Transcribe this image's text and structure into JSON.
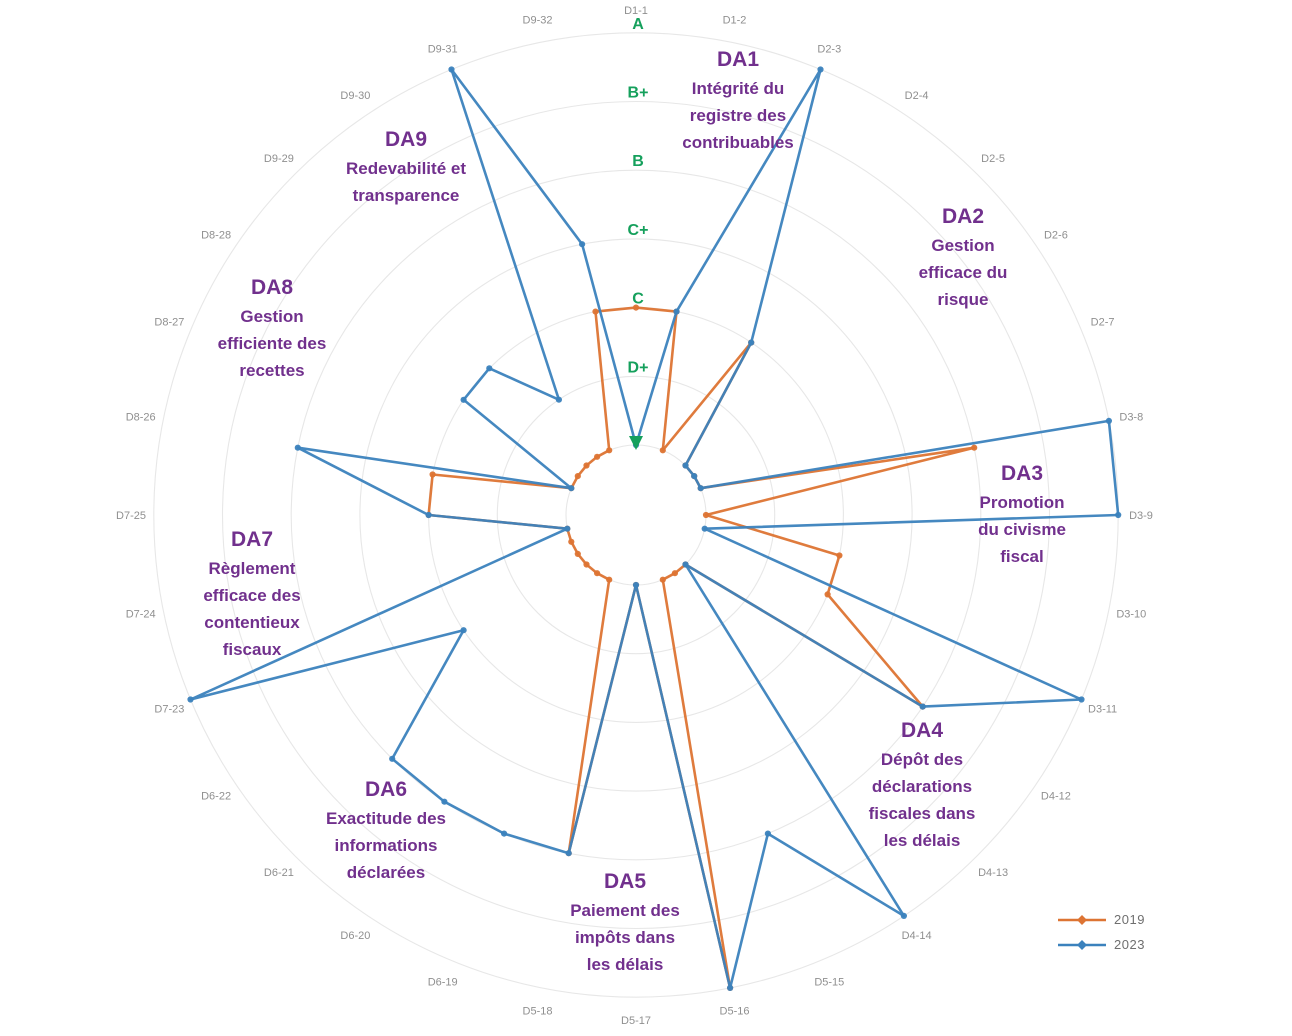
{
  "figure": {
    "background": "#ffffff",
    "description": "TADAT radar chart comparing assessment grades per indicator"
  },
  "chart_data": {
    "type": "radar",
    "grid": "on",
    "legend_position": "bottom-right",
    "scale_order": [
      "D",
      "D+",
      "C",
      "C+",
      "B",
      "B+",
      "A"
    ],
    "scale_numeric": {
      "D": 0,
      "D+": 1,
      "C": 2,
      "C+": 3,
      "B": 4,
      "B+": 5,
      "A": 6
    },
    "axis_grade_labels": [
      "A",
      "B+",
      "B",
      "C+",
      "C",
      "D+"
    ],
    "axis_origin_marker": "D",
    "indicators": [
      "D1-1",
      "D1-2",
      "D2-3",
      "D2-4",
      "D2-5",
      "D2-6",
      "D2-7",
      "D3-8",
      "D3-9",
      "D3-10",
      "D3-11",
      "D4-12",
      "D4-13",
      "D4-14",
      "D5-15",
      "D5-16",
      "D5-17",
      "D5-18",
      "D6-19",
      "D6-20",
      "D6-21",
      "D6-22",
      "D7-23",
      "D7-24",
      "D7-25",
      "D8-26",
      "D8-27",
      "D8-28",
      "D9-29",
      "D9-30",
      "D9-31",
      "D9-32"
    ],
    "groups": [
      {
        "code": "DA1",
        "name_lines": [
          "Intégrité du",
          "registre des",
          "contribuables"
        ]
      },
      {
        "code": "DA2",
        "name_lines": [
          "Gestion",
          "efficace du",
          "risque"
        ]
      },
      {
        "code": "DA3",
        "name_lines": [
          "Promotion",
          "du civisme",
          "fiscal"
        ]
      },
      {
        "code": "DA4",
        "name_lines": [
          "Dépôt des",
          "déclarations",
          "fiscales dans",
          "les délais"
        ]
      },
      {
        "code": "DA5",
        "name_lines": [
          "Paiement des",
          "impôts dans",
          "les délais"
        ]
      },
      {
        "code": "DA6",
        "name_lines": [
          "Exactitude des",
          "informations",
          "déclarées"
        ]
      },
      {
        "code": "DA7",
        "name_lines": [
          "Règlement",
          "efficace des",
          "contentieux",
          "fiscaux"
        ]
      },
      {
        "code": "DA8",
        "name_lines": [
          "Gestion",
          "efficiente des",
          "recettes"
        ]
      },
      {
        "code": "DA9",
        "name_lines": [
          "Redevabilité et",
          "transparence"
        ]
      }
    ],
    "series": [
      {
        "name": "2019",
        "color": "#dd7433",
        "grades": [
          "C",
          "C",
          "D",
          "C",
          "D",
          "D",
          "D",
          "B",
          "D",
          "C",
          "C",
          "B",
          "D",
          "D",
          "D",
          "A",
          "D",
          "B",
          "D",
          "D",
          "D",
          "D",
          "D",
          "D",
          "C",
          "C",
          "D",
          "D",
          "D",
          "D",
          "D",
          "C"
        ]
      },
      {
        "name": "2023",
        "color": "#3b82bd",
        "grades": [
          "D",
          "C",
          "A",
          "C",
          "D",
          "D",
          "D",
          "A",
          "A",
          "D",
          "A",
          "B",
          "D",
          "A",
          "B",
          "A",
          "D",
          "B",
          "B",
          "B",
          "B",
          "C",
          "A",
          "D",
          "C",
          "B",
          "D",
          "C",
          "C",
          "D+",
          "A",
          "C+"
        ]
      }
    ],
    "colors": {
      "grid": "#e7e7e7",
      "grade_labels": "#15a05c",
      "indicator_labels": "#8f8f8f",
      "group_labels": "#71308d",
      "origin_marker": "#15a05c"
    }
  },
  "legend": {
    "entries": [
      {
        "label": "2019",
        "color": "#dd7433"
      },
      {
        "label": "2023",
        "color": "#3b82bd"
      }
    ]
  }
}
